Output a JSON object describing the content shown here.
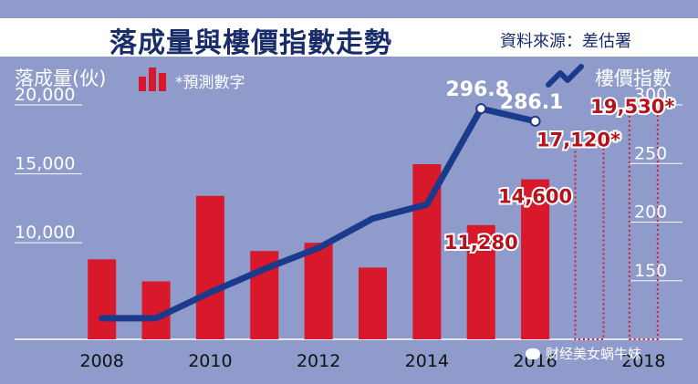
{
  "title": "落成量與樓價指數走勢",
  "source": "資料來源：差估署",
  "legend": {
    "left_axis_label": "落成量(伙)",
    "forecast_note": "*預測數字",
    "right_axis_label": "樓價指數"
  },
  "watermark": "财经美女蜗牛妹",
  "colors": {
    "bar": "#d8182b",
    "line": "#1c3a8c",
    "background": "#8e9bcb",
    "label_red": "#b5121b"
  },
  "chart_data": {
    "type": "bar",
    "x_tick_labels": [
      "2008",
      "2010",
      "2012",
      "2014",
      "2016",
      "2018"
    ],
    "categories": [
      "2008",
      "2009",
      "2010",
      "2011",
      "2012",
      "2013",
      "2014",
      "2015",
      "2016",
      "2017",
      "2018"
    ],
    "series": [
      {
        "name": "落成量(伙)",
        "axis": "left",
        "values": [
          8800,
          7200,
          13400,
          9400,
          10000,
          8200,
          15700,
          11280,
          14600,
          null,
          null
        ],
        "forecast_values": [
          null,
          null,
          null,
          null,
          null,
          null,
          null,
          null,
          null,
          17120,
          19530
        ]
      },
      {
        "name": "樓價指數",
        "axis": "right",
        "type": "line",
        "values": [
          118,
          118,
          140,
          160,
          178,
          203,
          215,
          296.8,
          286.1,
          null,
          null
        ]
      }
    ],
    "data_labels": [
      {
        "series": "落成量(伙)",
        "category": "2015",
        "text": "11,280"
      },
      {
        "series": "落成量(伙)",
        "category": "2016",
        "text": "14,600"
      },
      {
        "series": "落成量(伙)",
        "category": "2017",
        "text": "17,120*"
      },
      {
        "series": "落成量(伙)",
        "category": "2018",
        "text": "19,530*"
      },
      {
        "series": "樓價指數",
        "category": "2015",
        "text": "296.8"
      },
      {
        "series": "樓價指數",
        "category": "2016",
        "text": "286.1"
      }
    ],
    "y_left": {
      "ticks": [
        10000,
        15000,
        20000
      ],
      "tick_labels": [
        "10,000",
        "15,000",
        "20,000"
      ],
      "range": [
        3000,
        20000
      ]
    },
    "y_right": {
      "ticks": [
        150,
        200,
        250,
        300
      ],
      "tick_labels": [
        "150",
        "200",
        "250",
        "300"
      ],
      "range": [
        100,
        300
      ]
    },
    "grid": true,
    "legend_position": "top"
  }
}
